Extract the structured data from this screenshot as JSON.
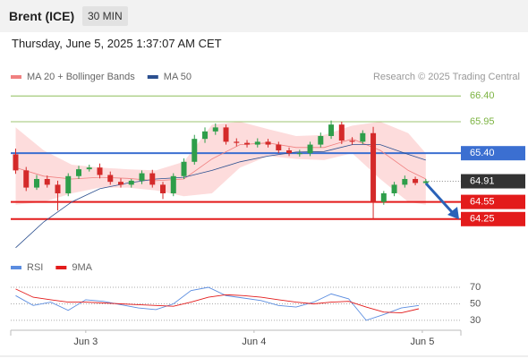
{
  "header": {
    "title": "Brent (ICE)",
    "timeframe": "30 MIN",
    "timestamp": "Thursday, June 5, 2025 1:37:07 AM CET"
  },
  "chart_data": [
    {
      "type": "candlestick",
      "credit": "Research © 2025 Trading Central",
      "up_color": "#2e9e4a",
      "down_color": "#d42a2a",
      "xlim": [
        -10.7,
        53.5
      ],
      "ylim": [
        63.7,
        66.59
      ],
      "xticks": [
        {
          "value": 0,
          "label": "Jun 3"
        },
        {
          "value": 24,
          "label": "Jun 4"
        },
        {
          "value": 48,
          "label": "Jun 5"
        }
      ],
      "x": [
        -10,
        -8.5,
        -7,
        -5.5,
        -4,
        -2.5,
        -1,
        0.5,
        2,
        3.5,
        5,
        6.5,
        8,
        9.5,
        11,
        12.5,
        14,
        15.5,
        17,
        18.5,
        20,
        21.5,
        23,
        24.5,
        26,
        27.5,
        29,
        30.5,
        32,
        33.5,
        35,
        36.5,
        38,
        39.5,
        41,
        42.5,
        44,
        45.5,
        47,
        48.5
      ],
      "open": [
        65.38,
        65.1,
        64.8,
        64.95,
        64.85,
        64.7,
        65.0,
        65.12,
        65.15,
        65.02,
        64.9,
        64.85,
        64.92,
        65.05,
        64.85,
        64.7,
        65.0,
        65.25,
        65.65,
        65.78,
        65.85,
        65.6,
        65.58,
        65.55,
        65.6,
        65.55,
        65.45,
        65.4,
        65.4,
        65.55,
        65.7,
        65.9,
        65.62,
        65.6,
        65.75,
        64.55,
        64.7,
        64.85,
        64.95,
        64.88
      ],
      "high": [
        65.48,
        65.16,
        65.02,
        65.01,
        64.92,
        65.05,
        65.18,
        65.2,
        65.22,
        65.08,
        64.96,
        64.95,
        65.1,
        65.11,
        64.9,
        65.05,
        65.31,
        65.72,
        65.85,
        65.92,
        65.9,
        65.66,
        65.63,
        65.66,
        65.65,
        65.6,
        65.5,
        65.46,
        65.6,
        65.76,
        65.97,
        65.95,
        65.68,
        65.8,
        65.86,
        64.74,
        64.9,
        65.01,
        64.99,
        64.95
      ],
      "low": [
        65.04,
        64.74,
        64.76,
        64.8,
        64.4,
        64.65,
        64.95,
        65.08,
        64.96,
        64.85,
        64.8,
        64.8,
        64.86,
        64.8,
        64.6,
        64.65,
        64.95,
        65.2,
        65.58,
        65.72,
        65.55,
        65.52,
        65.5,
        65.5,
        65.5,
        65.4,
        65.35,
        65.34,
        65.35,
        65.5,
        65.65,
        65.56,
        65.55,
        65.56,
        64.25,
        64.5,
        64.65,
        64.8,
        64.84,
        64.85
      ],
      "close": [
        65.1,
        64.8,
        64.95,
        64.85,
        64.7,
        65.0,
        65.12,
        65.15,
        65.02,
        64.9,
        64.85,
        64.92,
        65.05,
        64.85,
        64.7,
        65.0,
        65.25,
        65.65,
        65.78,
        65.85,
        65.6,
        65.58,
        65.55,
        65.6,
        65.55,
        65.45,
        65.4,
        65.4,
        65.55,
        65.7,
        65.9,
        65.62,
        65.6,
        65.75,
        64.55,
        64.7,
        64.85,
        64.95,
        64.88,
        64.91
      ],
      "series": [
        {
          "name": "MA 20 + Bollinger Bands",
          "color": "#f08080",
          "band_color": "#fddcdc",
          "x": [
            -10,
            -6,
            -2,
            2,
            6,
            10,
            14,
            18,
            22,
            26,
            30,
            34,
            38,
            42,
            46,
            48.5
          ],
          "values": [
            65.15,
            65.0,
            64.95,
            64.98,
            64.96,
            64.92,
            64.95,
            65.3,
            65.55,
            65.58,
            65.5,
            65.5,
            65.65,
            65.45,
            65.1,
            64.95
          ],
          "upper": [
            65.85,
            65.45,
            65.2,
            65.15,
            65.12,
            65.1,
            65.25,
            65.9,
            65.95,
            65.82,
            65.7,
            65.72,
            65.88,
            65.95,
            65.75,
            65.4
          ],
          "lower": [
            64.5,
            64.55,
            64.7,
            64.8,
            64.8,
            64.75,
            64.65,
            64.7,
            65.15,
            65.35,
            65.3,
            65.28,
            65.4,
            64.95,
            64.55,
            64.5
          ]
        },
        {
          "name": "MA 50",
          "color": "#2b4f8f",
          "x": [
            -10,
            -6,
            -2,
            2,
            6,
            10,
            14,
            18,
            22,
            26,
            30,
            34,
            38,
            42,
            46,
            48.5
          ],
          "values": [
            63.75,
            64.2,
            64.55,
            64.78,
            64.88,
            64.95,
            64.98,
            65.1,
            65.25,
            65.35,
            65.42,
            65.43,
            65.55,
            65.55,
            65.38,
            65.28
          ]
        }
      ],
      "levels": [
        {
          "value": 66.4,
          "label": "66.40",
          "style": "text",
          "color": "#7cb342"
        },
        {
          "value": 65.95,
          "label": "65.95",
          "style": "text",
          "color": "#7cb342"
        },
        {
          "value": 65.4,
          "label": "65.40",
          "style": "box",
          "color": "#3b6fd1"
        },
        {
          "value": 64.91,
          "label": "64.91",
          "style": "last",
          "color": "#333333"
        },
        {
          "value": 64.55,
          "label": "64.55",
          "style": "box",
          "color": "#e31b1b"
        },
        {
          "value": 64.25,
          "label": "64.25",
          "style": "box",
          "color": "#e31b1b"
        }
      ]
    },
    {
      "type": "line",
      "xlim": [
        -10.7,
        53.5
      ],
      "ylim": [
        19,
        82
      ],
      "yticks": [
        70,
        50,
        30
      ],
      "grid": true,
      "series": [
        {
          "name": "RSI",
          "color": "#5b8de0",
          "x": [
            -10,
            -7.5,
            -5,
            -2.5,
            0,
            2.5,
            5,
            7.5,
            10,
            12.5,
            15,
            17.5,
            20,
            22.5,
            25,
            27.5,
            30,
            32.5,
            35,
            37.5,
            40,
            42.5,
            45,
            47.5
          ],
          "values": [
            60,
            48,
            52,
            42,
            55,
            53,
            49,
            45,
            43,
            50,
            66,
            70,
            60,
            57,
            54,
            48,
            46,
            52,
            62,
            56,
            30,
            37,
            45,
            48
          ]
        },
        {
          "name": "9MA",
          "color": "#e31b1b",
          "x": [
            -10,
            -7.5,
            -5,
            -2.5,
            0,
            2.5,
            5,
            7.5,
            10,
            12.5,
            15,
            17.5,
            20,
            22.5,
            25,
            27.5,
            30,
            32.5,
            35,
            37.5,
            40,
            42.5,
            45,
            47.5
          ],
          "values": [
            68,
            58,
            55,
            52,
            52,
            51,
            50,
            49,
            48,
            47,
            52,
            58,
            61,
            60,
            58,
            55,
            52,
            50,
            52,
            53,
            46,
            40,
            39,
            44
          ]
        }
      ]
    }
  ]
}
